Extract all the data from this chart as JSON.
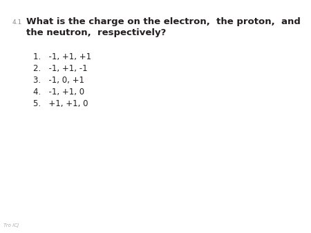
{
  "question_number": "4.1",
  "question_text_line1": "What is the charge on the electron,  the proton,  and",
  "question_text_line2": "the neutron,  respectively?",
  "options": [
    "1.   -1, +1, +1",
    "2.   -1, +1, -1",
    "3.   -1, 0, +1",
    "4.   -1, +1, 0",
    "5.   +1, +1, 0"
  ],
  "footer_text": "Tro ICJ",
  "background_color": "#ffffff",
  "text_color": "#231f20",
  "question_number_color": "#888888",
  "question_fontsize": 9.5,
  "option_fontsize": 8.5,
  "footer_fontsize": 5.0,
  "question_number_fontsize": 6.5
}
